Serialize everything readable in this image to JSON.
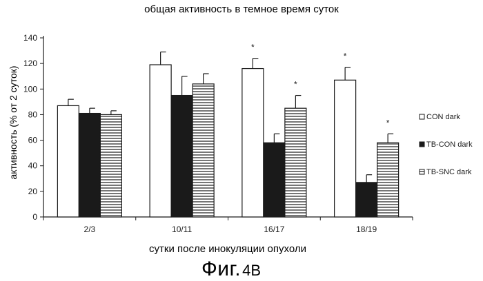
{
  "chart_data": {
    "type": "bar",
    "title": "общая активность в темное время суток",
    "xlabel": "сутки после инокуляции опухоли",
    "ylabel": "активность (% от 2 суток)",
    "categories": [
      "2/3",
      "10/11",
      "16/17",
      "18/19"
    ],
    "ylim": [
      0,
      140
    ],
    "yticks": [
      0,
      20,
      40,
      60,
      80,
      100,
      120,
      140
    ],
    "grid": false,
    "legend_position": "right",
    "series": [
      {
        "name": "CON dark",
        "values": [
          87,
          119,
          116,
          107
        ],
        "errors": [
          5,
          10,
          8,
          10
        ],
        "significant": [
          false,
          false,
          true,
          true
        ],
        "fill": "white"
      },
      {
        "name": "TB-CON dark",
        "values": [
          81,
          95,
          58,
          27
        ],
        "errors": [
          4,
          15,
          7,
          6
        ],
        "significant": [
          false,
          false,
          false,
          false
        ],
        "fill": "black"
      },
      {
        "name": "TB-SNC dark",
        "values": [
          80,
          104,
          85,
          58
        ],
        "errors": [
          3,
          8,
          10,
          7
        ],
        "significant": [
          false,
          false,
          true,
          true
        ],
        "fill": "hatch"
      }
    ],
    "significance_marker": "*"
  },
  "caption": {
    "prefix": "Фиг.",
    "number": "4B"
  },
  "colors": {
    "ink": "#1a1a1a",
    "background": "#ffffff"
  }
}
